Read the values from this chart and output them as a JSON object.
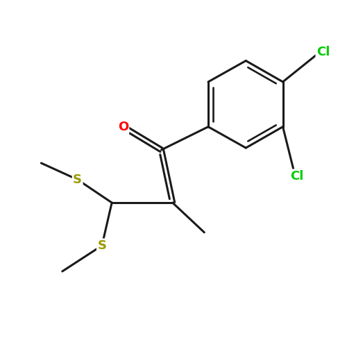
{
  "background_color": "#ffffff",
  "bond_color": "#1a1a1a",
  "atom_colors": {
    "O": "#ff0000",
    "S": "#999900",
    "Cl": "#00cc00"
  },
  "bond_width": 2.0,
  "fig_width": 5.0,
  "fig_height": 5.0,
  "dpi": 100
}
